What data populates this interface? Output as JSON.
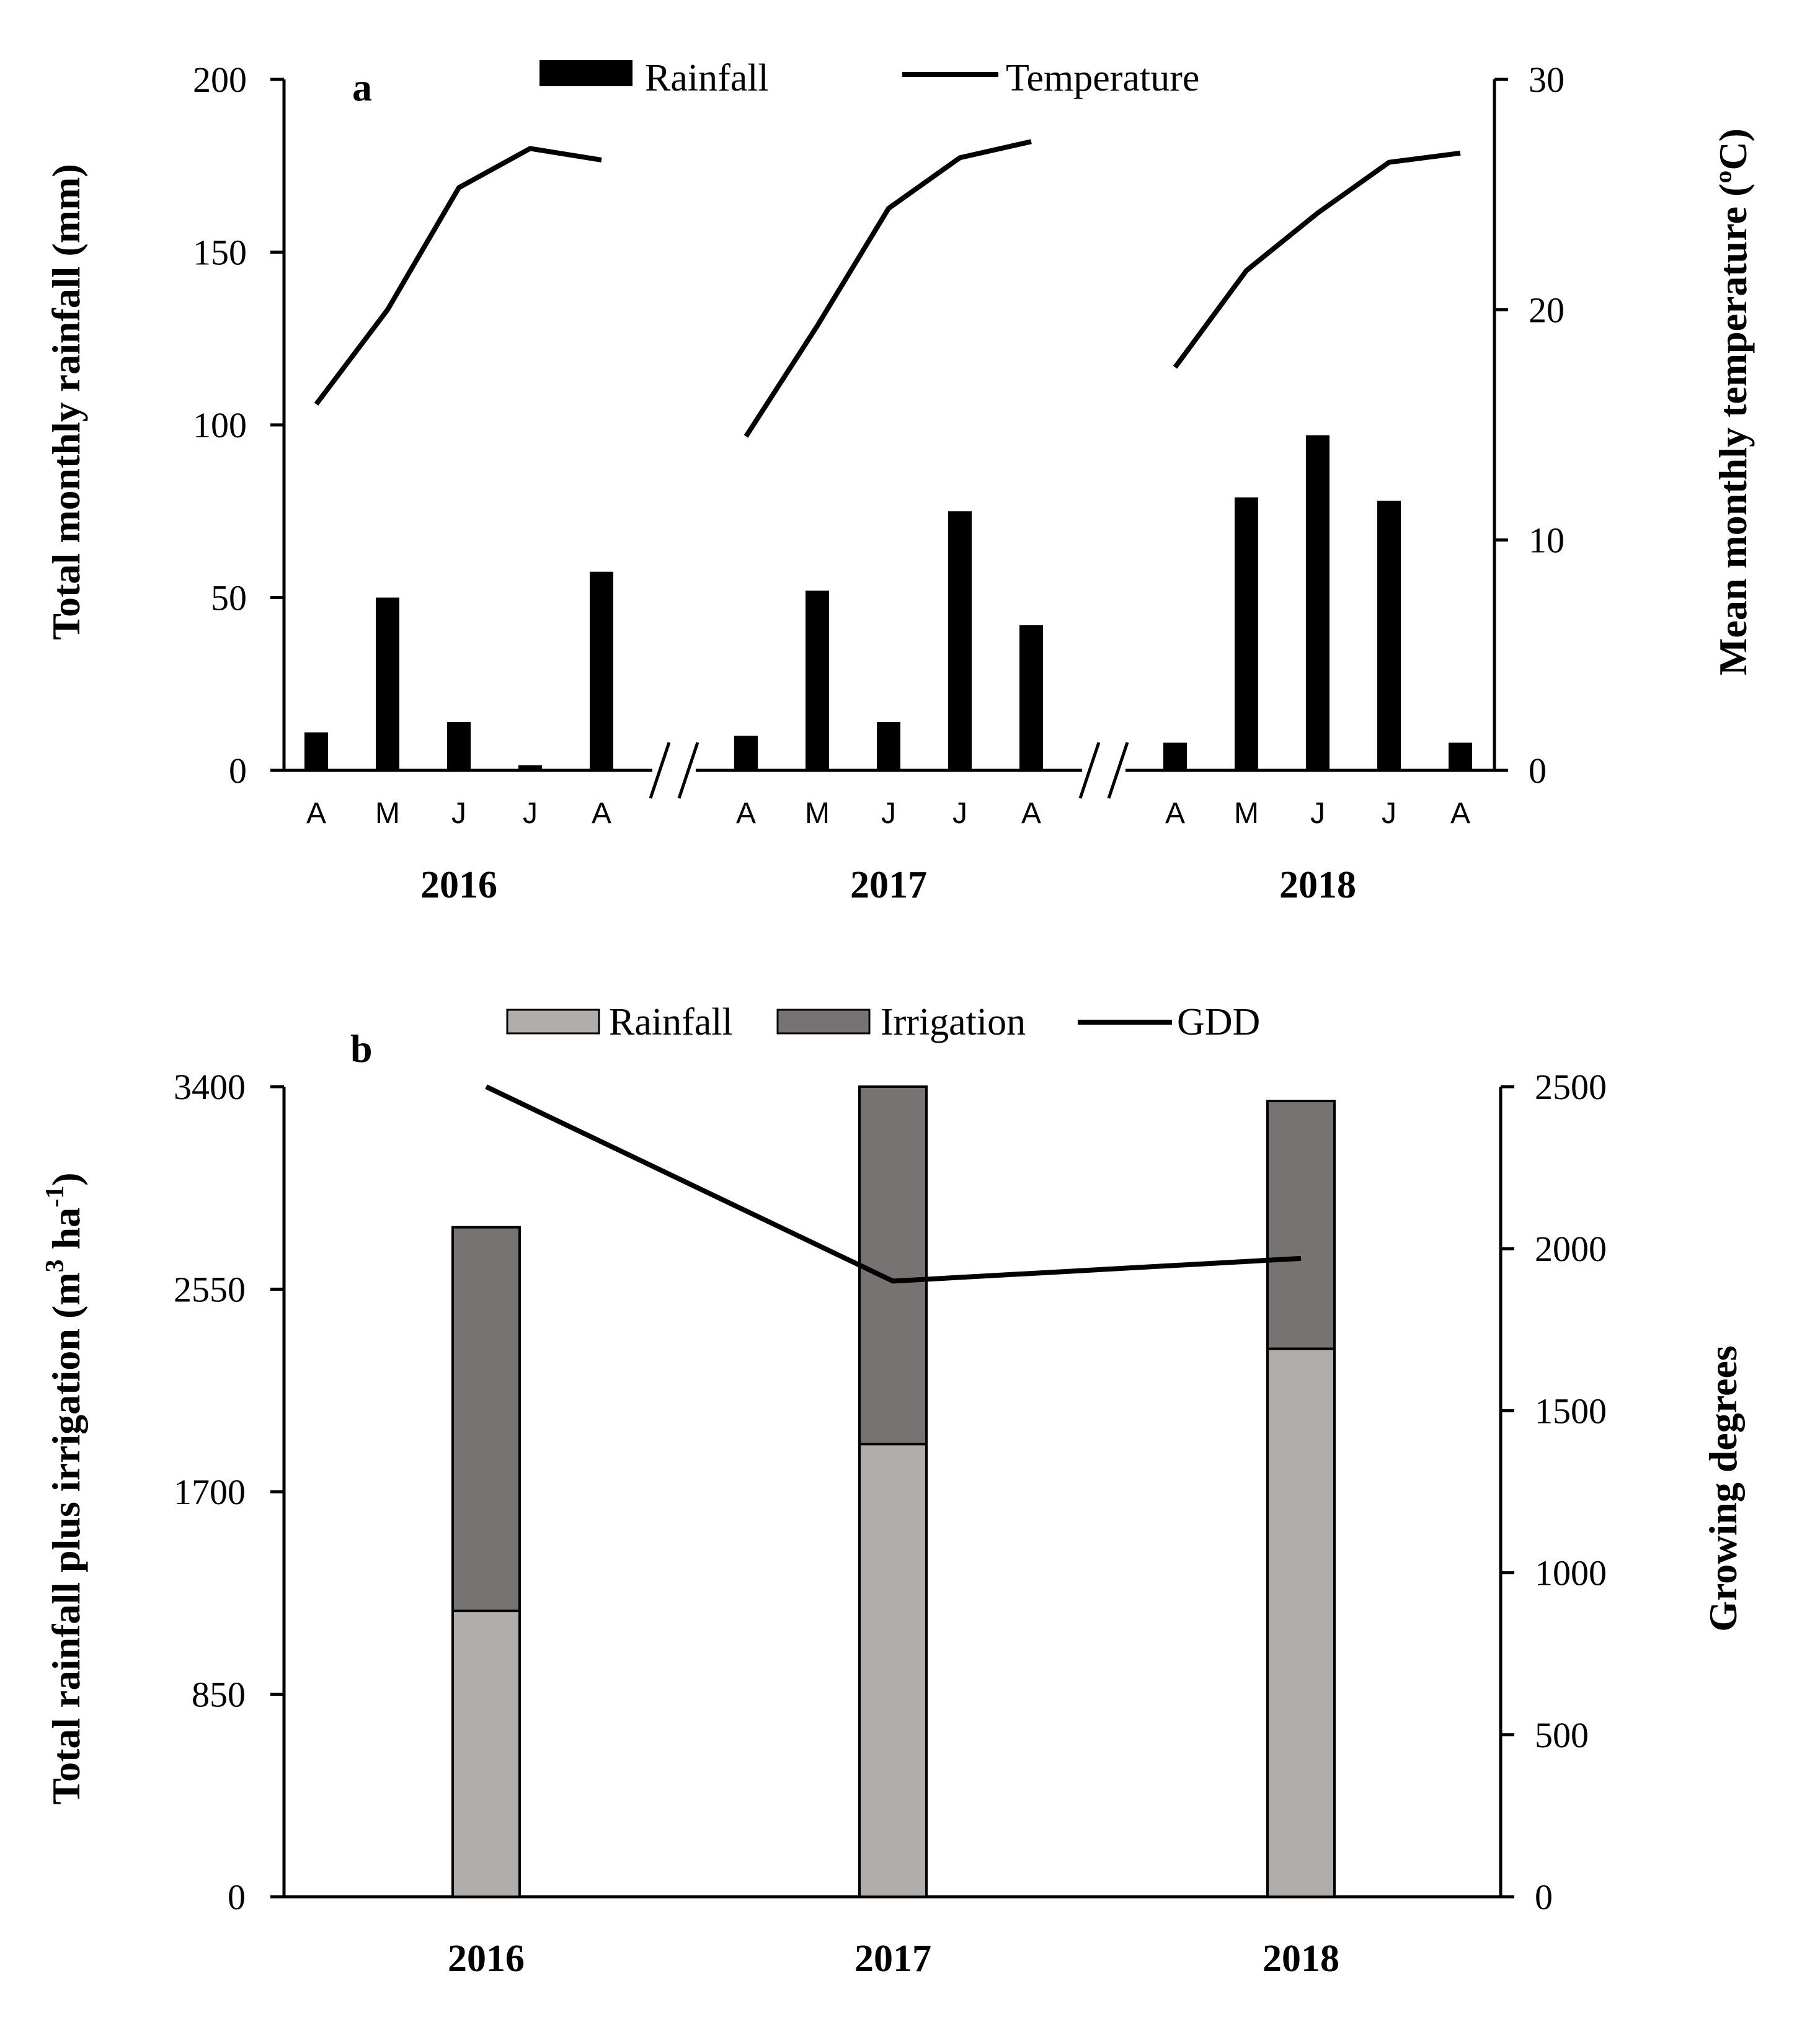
{
  "chart_data": [
    {
      "type": "bar+line",
      "panel": "a",
      "legend": {
        "rainfall": "Rainfall",
        "temperature": "Temperature"
      },
      "ylabel_left": "Total  monthly  rainfall (mm)",
      "ylabel_right": "Mean  monthly  temperature  (ºC)",
      "ylim_left": [
        0,
        200
      ],
      "yticks_left": [
        "200",
        "150",
        "100",
        "50",
        "0"
      ],
      "ylim_right": [
        0,
        30
      ],
      "yticks_right": [
        "30",
        "20",
        "10",
        "0"
      ],
      "break_marks": [
        "//",
        "//"
      ],
      "groups": [
        {
          "year": "2016",
          "months": [
            "A",
            "M",
            "J",
            "J",
            "A"
          ],
          "rainfall": [
            11,
            50,
            14,
            1.5,
            57.5
          ],
          "temperature": [
            15.9,
            20.0,
            25.3,
            27.0,
            26.5
          ]
        },
        {
          "year": "2017",
          "months": [
            "A",
            "M",
            "J",
            "J",
            "A"
          ],
          "rainfall": [
            10,
            52,
            14,
            75,
            42
          ],
          "temperature": [
            14.5,
            19.3,
            24.4,
            26.6,
            27.3
          ]
        },
        {
          "year": "2018",
          "months": [
            "A",
            "M",
            "J",
            "J",
            "A"
          ],
          "rainfall": [
            8,
            79,
            97,
            78,
            8
          ],
          "temperature": [
            17.5,
            21.7,
            24.2,
            26.4,
            26.8
          ]
        }
      ]
    },
    {
      "type": "stacked-bar+line",
      "panel": "b",
      "legend": {
        "rainfall": "Rainfall",
        "irrigation": "Irrigation",
        "gdd": "GDD"
      },
      "ylabel_left_prefix": "Total rainfall  plus irrigation (m",
      "ylabel_left_sup1": "3",
      "ylabel_left_mid": " ha",
      "ylabel_left_sup2": "-1",
      "ylabel_left_suffix": ")",
      "ylabel_right": "Growing degrees",
      "ylim_left": [
        0,
        3400
      ],
      "yticks_left": [
        "3400",
        "2550",
        "1700",
        "850",
        "0"
      ],
      "ylim_right": [
        0,
        2500
      ],
      "yticks_right": [
        "2500",
        "2000",
        "1500",
        "1000",
        "500",
        "0"
      ],
      "categories": [
        "2016",
        "2017",
        "2018"
      ],
      "series": [
        {
          "name": "Rainfall",
          "values": [
            1200,
            1900,
            2300
          ]
        },
        {
          "name": "Irrigation",
          "values": [
            1610,
            1500,
            1040
          ]
        }
      ],
      "gdd": [
        2500,
        1900,
        1970
      ]
    }
  ],
  "colors": {
    "bar_black": "#000000",
    "rain_light": "#b0adab",
    "irrigation_dark": "#787373",
    "line": "#000000"
  }
}
